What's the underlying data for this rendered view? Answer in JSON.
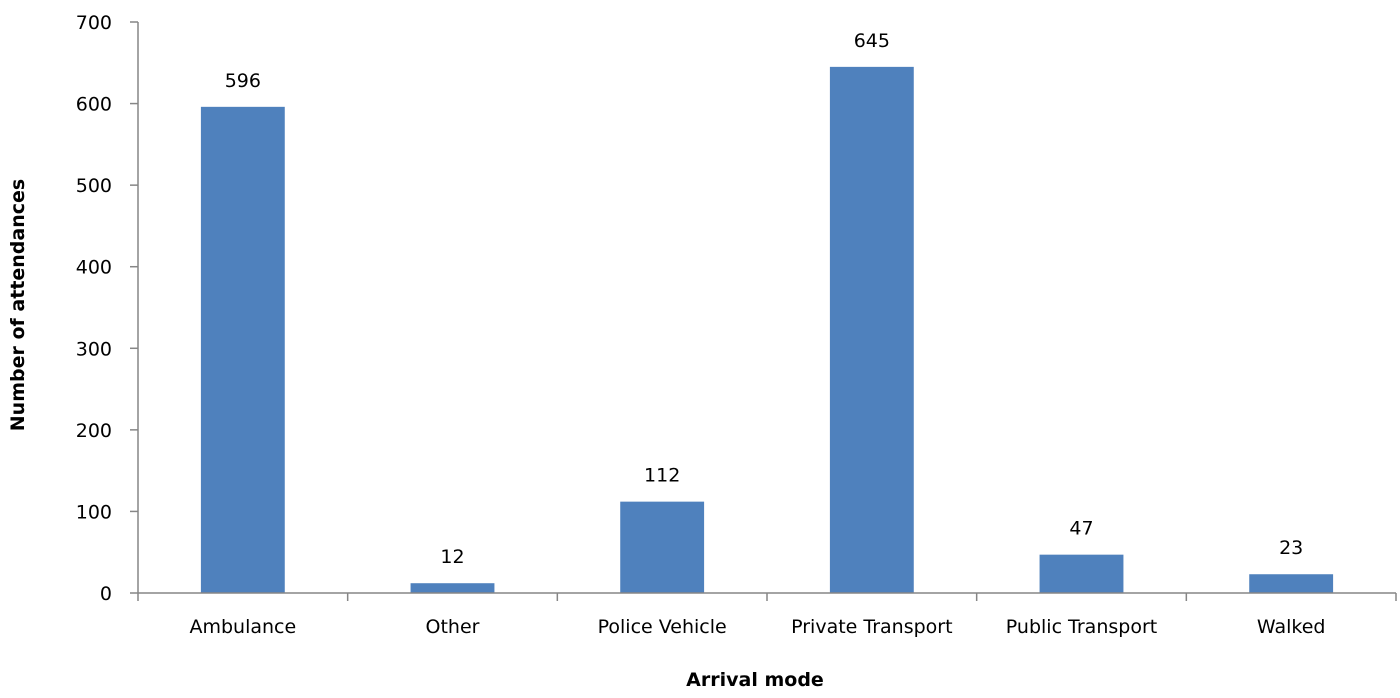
{
  "colors": {
    "bar": "#4f81bd",
    "axis": "#868686",
    "text": "#000000"
  },
  "chart_data": {
    "type": "bar",
    "title": "",
    "xlabel": "Arrival mode",
    "ylabel": "Number of attendances",
    "categories": [
      "Ambulance",
      "Other",
      "Police Vehicle",
      "Private Transport",
      "Public Transport",
      "Walked"
    ],
    "values": [
      596,
      12,
      112,
      645,
      47,
      23
    ],
    "data_labels": [
      "596",
      "12",
      "112",
      "645",
      "47",
      "23"
    ],
    "ylim": [
      0,
      700
    ],
    "yticks": [
      0,
      100,
      200,
      300,
      400,
      500,
      600,
      700
    ],
    "ytick_labels": [
      "0",
      "100",
      "200",
      "300",
      "400",
      "500",
      "600",
      "700"
    ],
    "grid": false,
    "legend": "none"
  }
}
